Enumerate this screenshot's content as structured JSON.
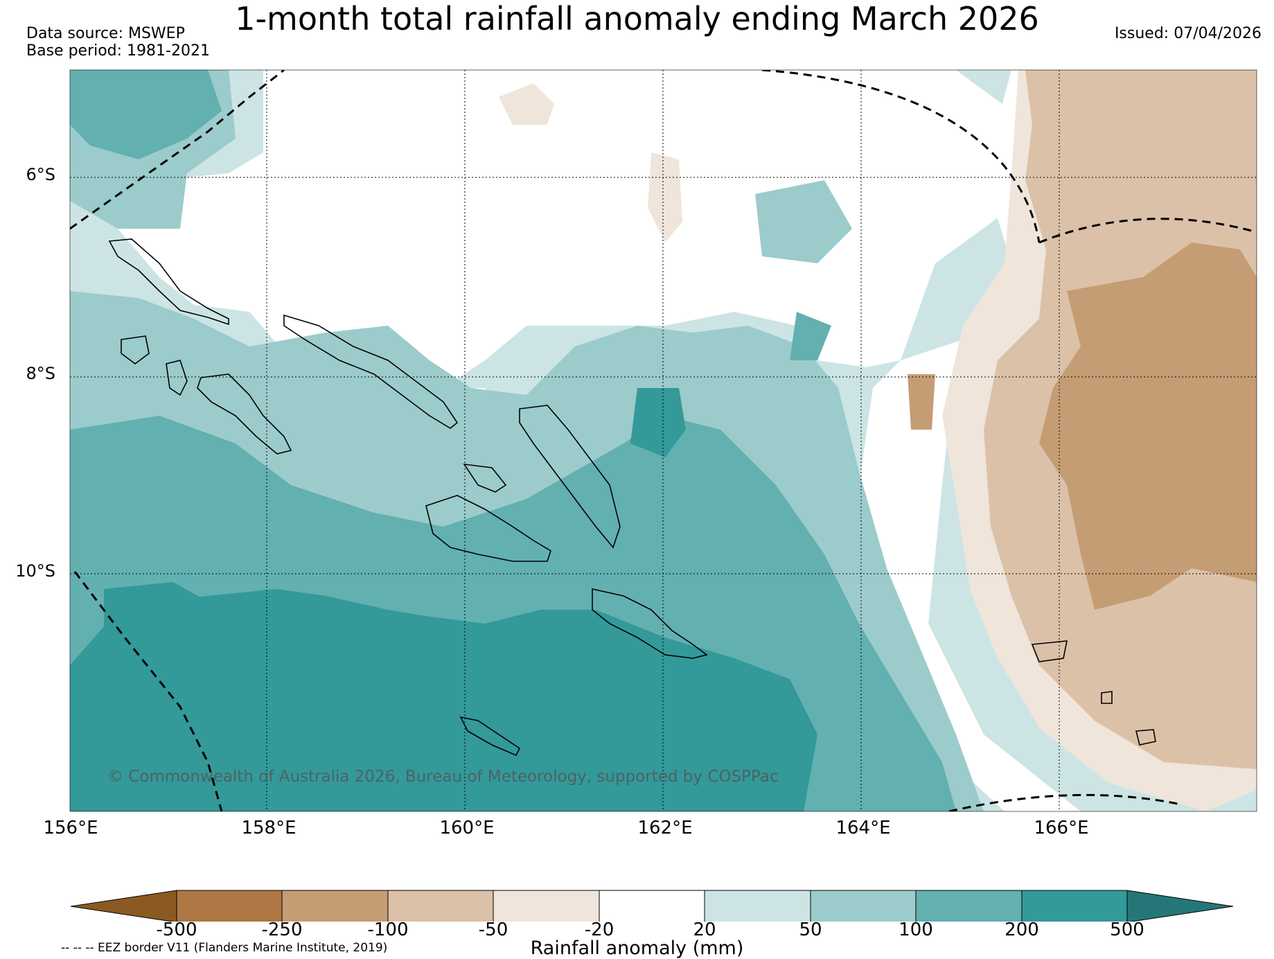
{
  "title": "1-month total rainfall anomaly ending March 2026",
  "meta": {
    "data_source": "Data source: MSWEP",
    "base_period": "Base period: 1981-2021",
    "issued": "Issued: 07/04/2026"
  },
  "map": {
    "lat_labels": [
      "6°S",
      "8°S",
      "10°S"
    ],
    "lon_labels": [
      "156°E",
      "158°E",
      "160°E",
      "162°E",
      "164°E",
      "166°E"
    ],
    "copyright": "© Commonwealth of Australia 2026, Bureau of Meteorology, supported by COSPPac",
    "colors": {
      "dry_500_plus": "#8b5a23",
      "dry_250_500": "#ad7844",
      "dry_100_250": "#c59d74",
      "dry_50_100": "#dbc1a8",
      "dry_20_50": "#efe5db",
      "neutral": "#ffffff",
      "wet_20_50": "#cde4e4",
      "wet_50_100": "#9ccbcb",
      "wet_100_200": "#63b0b0",
      "wet_200_500": "#339999",
      "wet_500_plus": "#257777",
      "coast": "#000000",
      "grid": "#000000"
    }
  },
  "colorbar": {
    "ticks": [
      "-500",
      "-250",
      "-100",
      "-50",
      "-20",
      "20",
      "50",
      "100",
      "200",
      "500"
    ],
    "label": "Rainfall anomaly (mm)",
    "eez_legend": "-- -- -- EEZ border V11 (Flanders Marine Institute, 2019)"
  }
}
